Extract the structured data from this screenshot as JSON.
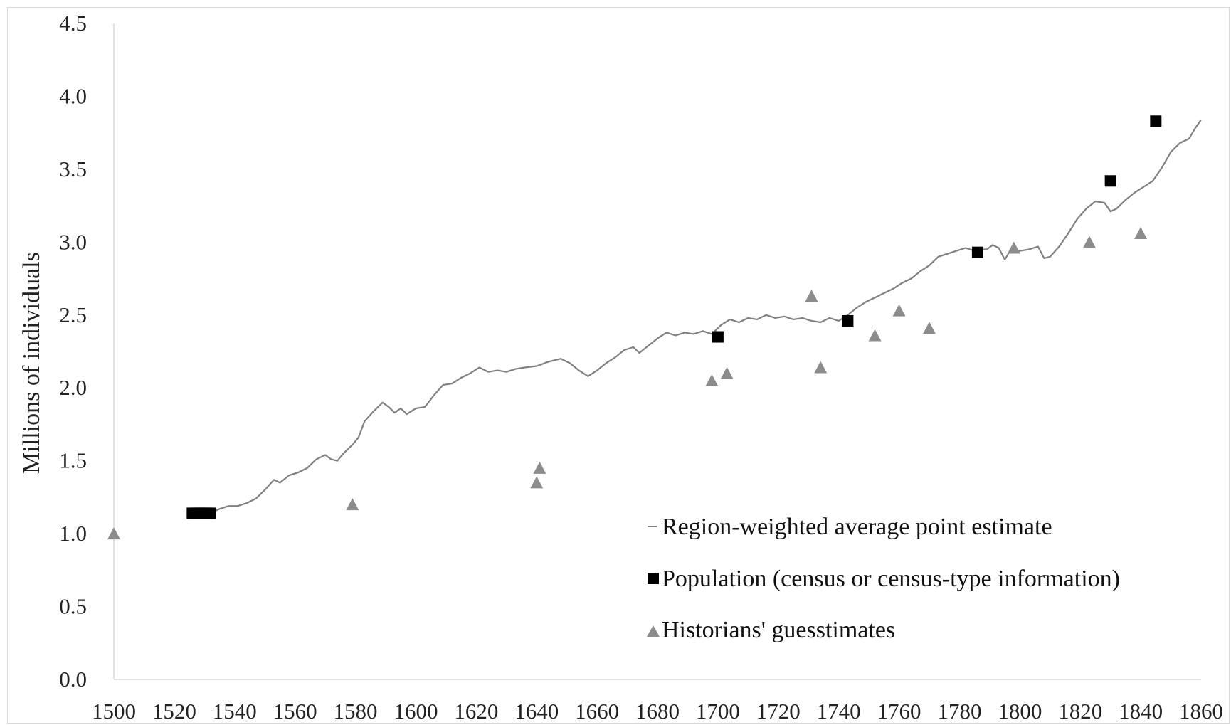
{
  "chart_data": {
    "type": "line",
    "title": "",
    "xlabel": "",
    "ylabel": "Millions of individuals",
    "xlim": [
      1500,
      1860
    ],
    "ylim": [
      0,
      4.5
    ],
    "x_ticks": [
      "1500",
      "1520",
      "1540",
      "1560",
      "1580",
      "1600",
      "1620",
      "1640",
      "1660",
      "1680",
      "1700",
      "1720",
      "1740",
      "1760",
      "1780",
      "1800",
      "1820",
      "1840",
      "1860"
    ],
    "y_ticks": [
      "0.0",
      "0.5",
      "1.0",
      "1.5",
      "2.0",
      "2.5",
      "3.0",
      "3.5",
      "4.0",
      "4.5"
    ],
    "grid": false,
    "legend_position": "bottom-right",
    "colors": {
      "line": "#808080",
      "census": "#000000",
      "guess": "#8c8c8c",
      "axis": "#d9d9d9"
    },
    "series": [
      {
        "name": "Region-weighted average point estimate",
        "kind": "line",
        "points": [
          [
            1532,
            1.14
          ],
          [
            1535,
            1.17
          ],
          [
            1538,
            1.19
          ],
          [
            1541,
            1.19
          ],
          [
            1544,
            1.21
          ],
          [
            1547,
            1.24
          ],
          [
            1550,
            1.3
          ],
          [
            1553,
            1.37
          ],
          [
            1555,
            1.35
          ],
          [
            1558,
            1.4
          ],
          [
            1561,
            1.42
          ],
          [
            1564,
            1.45
          ],
          [
            1567,
            1.51
          ],
          [
            1570,
            1.54
          ],
          [
            1572,
            1.51
          ],
          [
            1574,
            1.5
          ],
          [
            1576,
            1.55
          ],
          [
            1579,
            1.61
          ],
          [
            1581,
            1.66
          ],
          [
            1583,
            1.77
          ],
          [
            1586,
            1.84
          ],
          [
            1589,
            1.9
          ],
          [
            1591,
            1.87
          ],
          [
            1593,
            1.83
          ],
          [
            1595,
            1.86
          ],
          [
            1597,
            1.82
          ],
          [
            1600,
            1.86
          ],
          [
            1603,
            1.87
          ],
          [
            1606,
            1.95
          ],
          [
            1609,
            2.02
          ],
          [
            1612,
            2.03
          ],
          [
            1615,
            2.07
          ],
          [
            1618,
            2.1
          ],
          [
            1621,
            2.14
          ],
          [
            1624,
            2.11
          ],
          [
            1627,
            2.12
          ],
          [
            1630,
            2.11
          ],
          [
            1633,
            2.13
          ],
          [
            1636,
            2.14
          ],
          [
            1640,
            2.15
          ],
          [
            1644,
            2.18
          ],
          [
            1648,
            2.2
          ],
          [
            1651,
            2.17
          ],
          [
            1654,
            2.12
          ],
          [
            1657,
            2.08
          ],
          [
            1660,
            2.12
          ],
          [
            1663,
            2.17
          ],
          [
            1666,
            2.21
          ],
          [
            1669,
            2.26
          ],
          [
            1672,
            2.28
          ],
          [
            1674,
            2.24
          ],
          [
            1677,
            2.29
          ],
          [
            1680,
            2.34
          ],
          [
            1683,
            2.38
          ],
          [
            1686,
            2.36
          ],
          [
            1689,
            2.38
          ],
          [
            1692,
            2.37
          ],
          [
            1695,
            2.39
          ],
          [
            1698,
            2.37
          ],
          [
            1701,
            2.43
          ],
          [
            1704,
            2.47
          ],
          [
            1707,
            2.45
          ],
          [
            1710,
            2.48
          ],
          [
            1713,
            2.47
          ],
          [
            1716,
            2.5
          ],
          [
            1719,
            2.48
          ],
          [
            1722,
            2.49
          ],
          [
            1725,
            2.47
          ],
          [
            1728,
            2.48
          ],
          [
            1731,
            2.46
          ],
          [
            1734,
            2.45
          ],
          [
            1737,
            2.48
          ],
          [
            1740,
            2.46
          ],
          [
            1743,
            2.5
          ],
          [
            1746,
            2.55
          ],
          [
            1749,
            2.59
          ],
          [
            1752,
            2.62
          ],
          [
            1755,
            2.65
          ],
          [
            1758,
            2.68
          ],
          [
            1761,
            2.72
          ],
          [
            1764,
            2.75
          ],
          [
            1767,
            2.8
          ],
          [
            1770,
            2.84
          ],
          [
            1773,
            2.9
          ],
          [
            1776,
            2.92
          ],
          [
            1779,
            2.94
          ],
          [
            1782,
            2.96
          ],
          [
            1785,
            2.94
          ],
          [
            1787,
            2.95
          ],
          [
            1789,
            2.95
          ],
          [
            1791,
            2.98
          ],
          [
            1793,
            2.96
          ],
          [
            1795,
            2.88
          ],
          [
            1797,
            2.95
          ],
          [
            1799,
            2.93
          ],
          [
            1800,
            2.94
          ],
          [
            1803,
            2.95
          ],
          [
            1806,
            2.97
          ],
          [
            1808,
            2.89
          ],
          [
            1810,
            2.9
          ],
          [
            1813,
            2.97
          ],
          [
            1816,
            3.06
          ],
          [
            1819,
            3.16
          ],
          [
            1822,
            3.23
          ],
          [
            1825,
            3.28
          ],
          [
            1828,
            3.27
          ],
          [
            1830,
            3.21
          ],
          [
            1832,
            3.23
          ],
          [
            1835,
            3.29
          ],
          [
            1838,
            3.34
          ],
          [
            1841,
            3.38
          ],
          [
            1844,
            3.42
          ],
          [
            1847,
            3.51
          ],
          [
            1850,
            3.62
          ],
          [
            1853,
            3.68
          ],
          [
            1856,
            3.71
          ],
          [
            1858,
            3.78
          ],
          [
            1860,
            3.84
          ]
        ]
      },
      {
        "name": "Population (census or census-type information)",
        "kind": "square-markers",
        "points": [
          [
            1526,
            1.14
          ],
          [
            1527,
            1.14
          ],
          [
            1528,
            1.14
          ],
          [
            1529,
            1.14
          ],
          [
            1530,
            1.14
          ],
          [
            1531,
            1.14
          ],
          [
            1532,
            1.14
          ],
          [
            1700,
            2.35
          ],
          [
            1743,
            2.46
          ],
          [
            1786,
            2.93
          ],
          [
            1830,
            3.42
          ],
          [
            1845,
            3.83
          ]
        ]
      },
      {
        "name": "Historians' guesstimates",
        "kind": "triangle-markers",
        "points": [
          [
            1500,
            1.0
          ],
          [
            1579,
            1.2
          ],
          [
            1640,
            1.35
          ],
          [
            1641,
            1.45
          ],
          [
            1698,
            2.05
          ],
          [
            1703,
            2.1
          ],
          [
            1731,
            2.63
          ],
          [
            1734,
            2.14
          ],
          [
            1752,
            2.36
          ],
          [
            1760,
            2.53
          ],
          [
            1770,
            2.41
          ],
          [
            1798,
            2.96
          ],
          [
            1823,
            3.0
          ],
          [
            1840,
            3.06
          ]
        ]
      }
    ]
  }
}
